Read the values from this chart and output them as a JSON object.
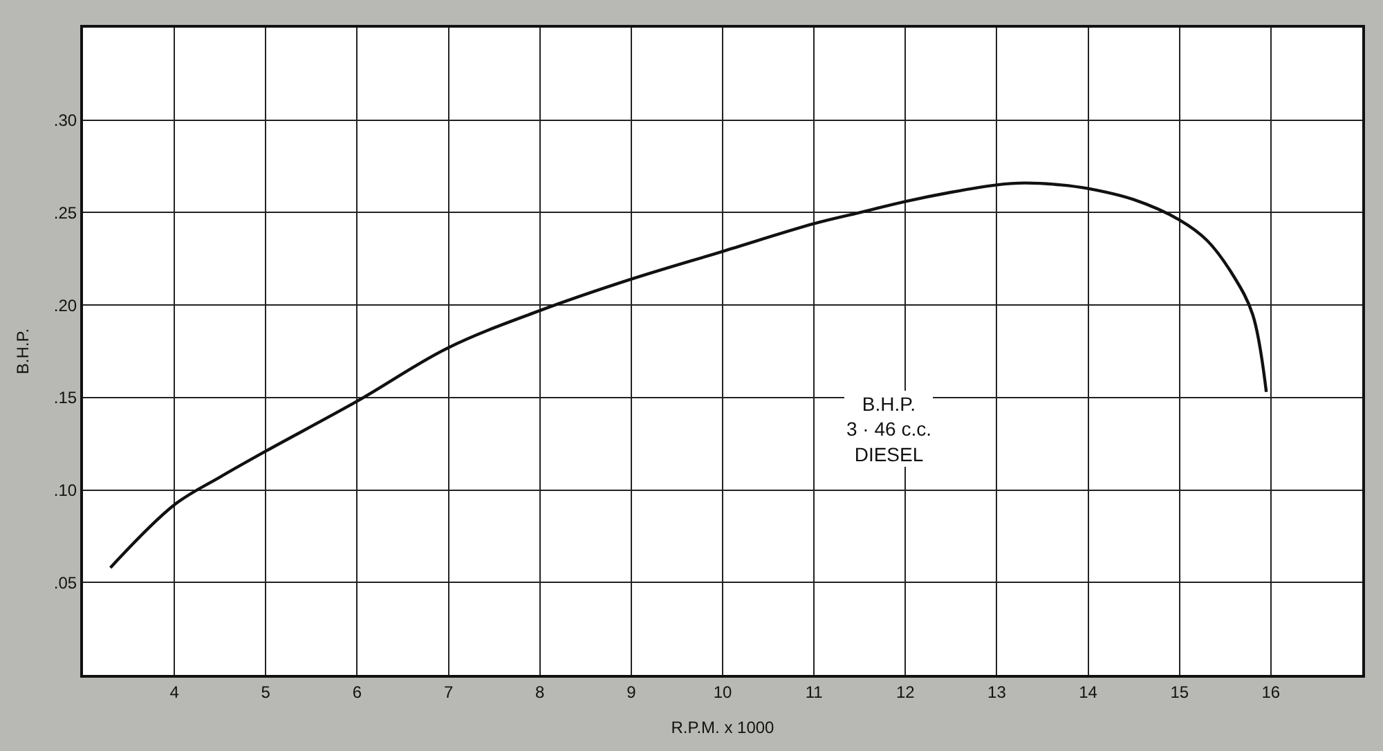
{
  "chart_data": {
    "type": "line",
    "xlabel": "R.P.M. x 1000",
    "ylabel": "B.H.P.",
    "x": [
      3.3,
      4.0,
      4.5,
      5.0,
      6.0,
      7.0,
      8.0,
      9.0,
      10.0,
      11.0,
      11.5,
      12.0,
      12.5,
      13.0,
      13.3,
      13.7,
      14.0,
      14.5,
      15.0,
      15.3,
      15.6,
      15.8,
      15.95
    ],
    "series": [
      {
        "color": "#111111",
        "values": [
          0.058,
          0.092,
          0.107,
          0.121,
          0.148,
          0.177,
          0.197,
          0.214,
          0.229,
          0.244,
          0.25,
          0.256,
          0.261,
          0.265,
          0.266,
          0.265,
          0.263,
          0.257,
          0.246,
          0.235,
          0.215,
          0.195,
          0.153
        ]
      }
    ],
    "xlim": [
      3,
      17
    ],
    "xticks": [
      4,
      5,
      6,
      7,
      8,
      9,
      10,
      11,
      12,
      13,
      14,
      15,
      16
    ],
    "ylim": [
      0,
      0.35
    ],
    "yticks": [
      {
        "value": 0.05,
        "label": ".05"
      },
      {
        "value": 0.1,
        "label": ".10"
      },
      {
        "value": 0.15,
        "label": ".15"
      },
      {
        "value": 0.2,
        "label": ".20"
      },
      {
        "value": 0.25,
        "label": ".25"
      },
      {
        "value": 0.3,
        "label": ".30"
      }
    ],
    "grid": true,
    "marker": "none",
    "line_style": "solid",
    "annotations": [
      "B.H.P.\n3 · 46 c.c.\nDIESEL"
    ]
  }
}
